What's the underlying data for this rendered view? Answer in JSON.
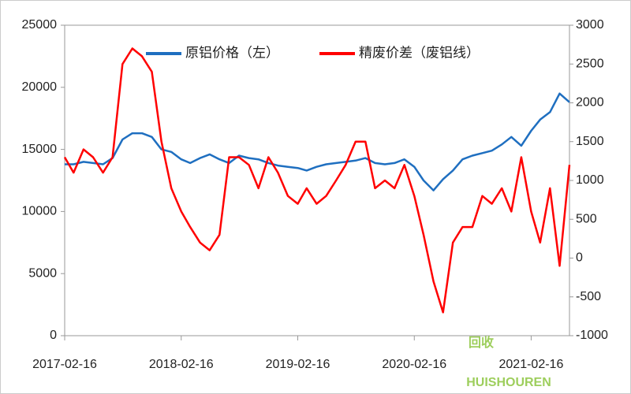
{
  "chart_data": {
    "type": "line",
    "x": [
      "2017-02-16",
      "2017-03-16",
      "2017-04-16",
      "2017-05-16",
      "2017-06-16",
      "2017-07-16",
      "2017-08-16",
      "2017-09-16",
      "2017-10-16",
      "2017-11-16",
      "2017-12-16",
      "2018-01-16",
      "2018-02-16",
      "2018-03-16",
      "2018-04-16",
      "2018-05-16",
      "2018-06-16",
      "2018-07-16",
      "2018-08-16",
      "2018-09-16",
      "2018-10-16",
      "2018-11-16",
      "2018-12-16",
      "2019-01-16",
      "2019-02-16",
      "2019-03-16",
      "2019-04-16",
      "2019-05-16",
      "2019-06-16",
      "2019-07-16",
      "2019-08-16",
      "2019-09-16",
      "2019-10-16",
      "2019-11-16",
      "2019-12-16",
      "2020-01-16",
      "2020-02-16",
      "2020-03-16",
      "2020-04-16",
      "2020-05-16",
      "2020-06-16",
      "2020-07-16",
      "2020-08-16",
      "2020-09-16",
      "2020-10-16",
      "2020-11-16",
      "2020-12-16",
      "2021-01-16",
      "2021-02-16",
      "2021-03-16",
      "2021-04-16",
      "2021-05-16",
      "2021-06-16"
    ],
    "series": [
      {
        "name": "原铝价格（左）",
        "color": "#1f6fc0",
        "axis": "y",
        "values": [
          13800,
          13800,
          14000,
          13900,
          13800,
          14300,
          15800,
          16300,
          16300,
          16000,
          15000,
          14800,
          14200,
          13900,
          14300,
          14600,
          14200,
          13900,
          14500,
          14300,
          14200,
          13900,
          13700,
          13600,
          13500,
          13300,
          13600,
          13800,
          13900,
          14000,
          14100,
          14300,
          13900,
          13800,
          13900,
          14200,
          13600,
          12500,
          11700,
          12600,
          13300,
          14200,
          14500,
          14700,
          14900,
          15400,
          16000,
          15300,
          16500,
          17400,
          18000,
          19500,
          18800
        ]
      },
      {
        "name": "精废价差（废铝线）",
        "color": "#ff0000",
        "axis": "y2",
        "values": [
          1300,
          1100,
          1400,
          1300,
          1100,
          1300,
          2500,
          2700,
          2600,
          2400,
          1500,
          900,
          600,
          400,
          200,
          100,
          300,
          1300,
          1300,
          1200,
          900,
          1300,
          1100,
          800,
          700,
          900,
          700,
          800,
          1000,
          1200,
          1500,
          1500,
          900,
          1000,
          900,
          1200,
          800,
          300,
          -300,
          -700,
          200,
          400,
          400,
          800,
          700,
          900,
          600,
          1300,
          600,
          200,
          900,
          -100,
          1200
        ]
      }
    ],
    "xlim": [
      "2017-02-16",
      "2021-06-16"
    ],
    "xticks": [
      "2017-02-16",
      "2018-02-16",
      "2019-02-16",
      "2020-02-16",
      "2021-02-16"
    ],
    "ylim": [
      0,
      25000
    ],
    "yticks": [
      0,
      5000,
      10000,
      15000,
      20000,
      25000
    ],
    "y2lim": [
      -1000,
      3000
    ],
    "y2ticks": [
      -1000,
      -500,
      0,
      500,
      1000,
      1500,
      2000,
      2500,
      3000
    ],
    "watermark": {
      "main": "回收",
      "sub": "HUISHOUREN"
    }
  }
}
